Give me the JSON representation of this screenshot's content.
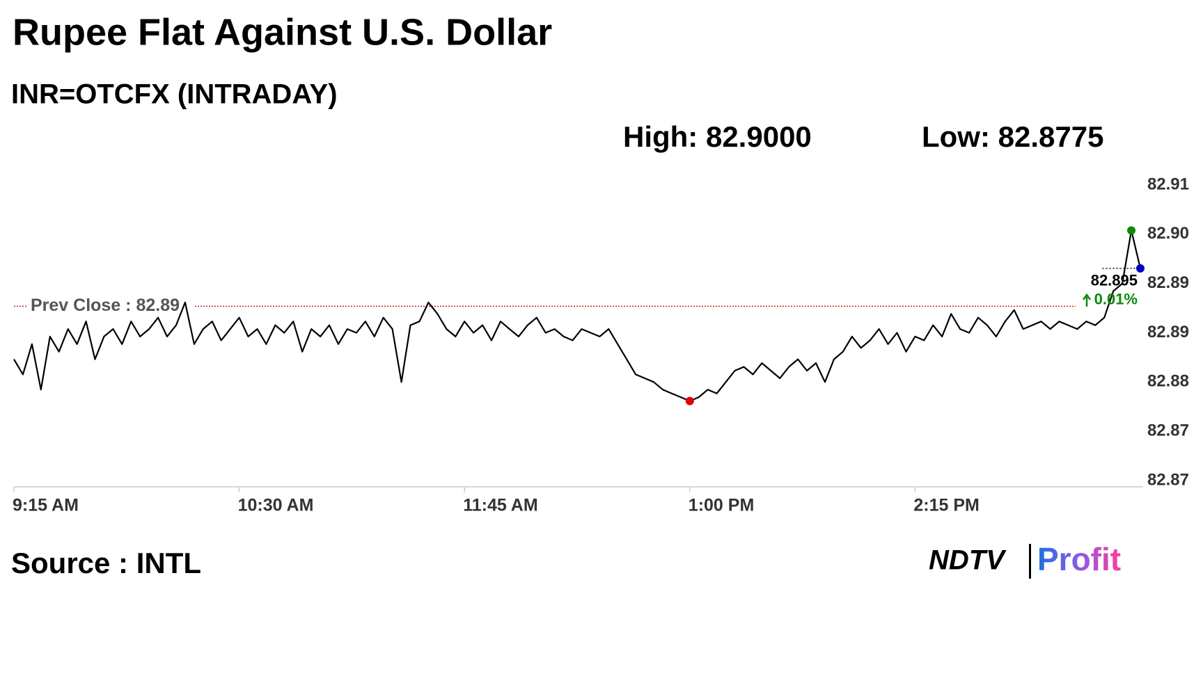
{
  "chart_data": {
    "type": "line",
    "title": "Rupee Flat Against U.S. Dollar",
    "subtitle": "INR=OTCFX (INTRADAY)",
    "high_text": "High: 82.9000",
    "low_text": "Low: 82.8775",
    "source": "Source : INTL",
    "logo": {
      "left": "NDTV",
      "right": "Profit"
    },
    "prev_close": 82.89,
    "prev_close_label": "Prev Close : 82.89",
    "change_label": "0.01%",
    "x": [
      555,
      558,
      561,
      564,
      567,
      570,
      573,
      576,
      579,
      582,
      585,
      588,
      591,
      594,
      597,
      600,
      603,
      606,
      609,
      612,
      615,
      618,
      621,
      624,
      627,
      630,
      633,
      636,
      639,
      642,
      645,
      648,
      651,
      654,
      657,
      660,
      663,
      666,
      669,
      672,
      675,
      678,
      681,
      684,
      687,
      690,
      693,
      696,
      699,
      702,
      705,
      708,
      711,
      714,
      717,
      720,
      723,
      726,
      729,
      732,
      735,
      738,
      741,
      744,
      747,
      750,
      753,
      756,
      759,
      762,
      765,
      768,
      771,
      774,
      777,
      780,
      783,
      786,
      789,
      792,
      795,
      798,
      801,
      804,
      807,
      810,
      813,
      816,
      819,
      822,
      825,
      828,
      831,
      834,
      837,
      840,
      843,
      846,
      849,
      852,
      855,
      858,
      861,
      864,
      867,
      870,
      873,
      876,
      879,
      882,
      885,
      888,
      891,
      894,
      897,
      900,
      903,
      906,
      909,
      912,
      915,
      918,
      921,
      924,
      927,
      930
    ],
    "series": [
      {
        "name": "INR=OTCFX",
        "color": "#000000",
        "values": [
          82.883,
          82.881,
          82.885,
          82.879,
          82.886,
          82.884,
          82.887,
          82.885,
          82.888,
          82.883,
          82.886,
          82.887,
          82.885,
          82.888,
          82.886,
          82.887,
          82.8885,
          82.886,
          82.8875,
          82.8905,
          82.885,
          82.887,
          82.888,
          82.8855,
          82.887,
          82.8885,
          82.886,
          82.887,
          82.885,
          82.8875,
          82.8865,
          82.888,
          82.884,
          82.887,
          82.886,
          82.8875,
          82.885,
          82.887,
          82.8865,
          82.888,
          82.886,
          82.8885,
          82.887,
          82.88,
          82.8875,
          82.888,
          82.8905,
          82.889,
          82.887,
          82.886,
          82.888,
          82.8865,
          82.8875,
          82.8855,
          82.888,
          82.887,
          82.886,
          82.8875,
          82.8885,
          82.8865,
          82.887,
          82.886,
          82.8855,
          82.887,
          82.8865,
          82.886,
          82.887,
          82.885,
          82.883,
          82.881,
          82.8805,
          82.88,
          82.879,
          82.8785,
          82.878,
          82.8775,
          82.878,
          82.879,
          82.8785,
          82.88,
          82.8815,
          82.882,
          82.881,
          82.8825,
          82.8815,
          82.8805,
          82.882,
          82.883,
          82.8815,
          82.8825,
          82.88,
          82.883,
          82.884,
          82.886,
          82.8845,
          82.8855,
          82.887,
          82.885,
          82.8865,
          82.884,
          82.886,
          82.8855,
          82.8875,
          82.886,
          82.889,
          82.887,
          82.8865,
          82.8885,
          82.8875,
          82.886,
          82.888,
          82.8895,
          82.887,
          82.8875,
          82.888,
          82.887,
          82.888,
          82.8875,
          82.887,
          82.888,
          82.8875,
          82.8885,
          82.892,
          82.893,
          82.9,
          82.895
        ]
      }
    ],
    "xlim": [
      555,
      930
    ],
    "xticks": [
      {
        "value": 555,
        "label": "9:15 AM"
      },
      {
        "value": 630,
        "label": "10:30 AM"
      },
      {
        "value": 705,
        "label": "11:45 AM"
      },
      {
        "value": 780,
        "label": "1:00 PM"
      },
      {
        "value": 855,
        "label": "2:15 PM"
      }
    ],
    "ylim": [
      82.867,
      82.906
    ],
    "yticks": [
      {
        "value": 82.906,
        "label": "82.91"
      },
      {
        "value": 82.8995,
        "label": "82.90"
      },
      {
        "value": 82.893,
        "label": "82.89"
      },
      {
        "value": 82.8865,
        "label": "82.89"
      },
      {
        "value": 82.88,
        "label": "82.88"
      },
      {
        "value": 82.8735,
        "label": "82.87"
      },
      {
        "value": 82.867,
        "label": "82.87"
      }
    ],
    "high_index": 124,
    "low_index": 75,
    "high_color": "#0a8a0a",
    "low_color": "#e00000",
    "last_color": "#0000cc",
    "prev_close_color": "#c00000",
    "change_color": "#0a8a0a"
  }
}
